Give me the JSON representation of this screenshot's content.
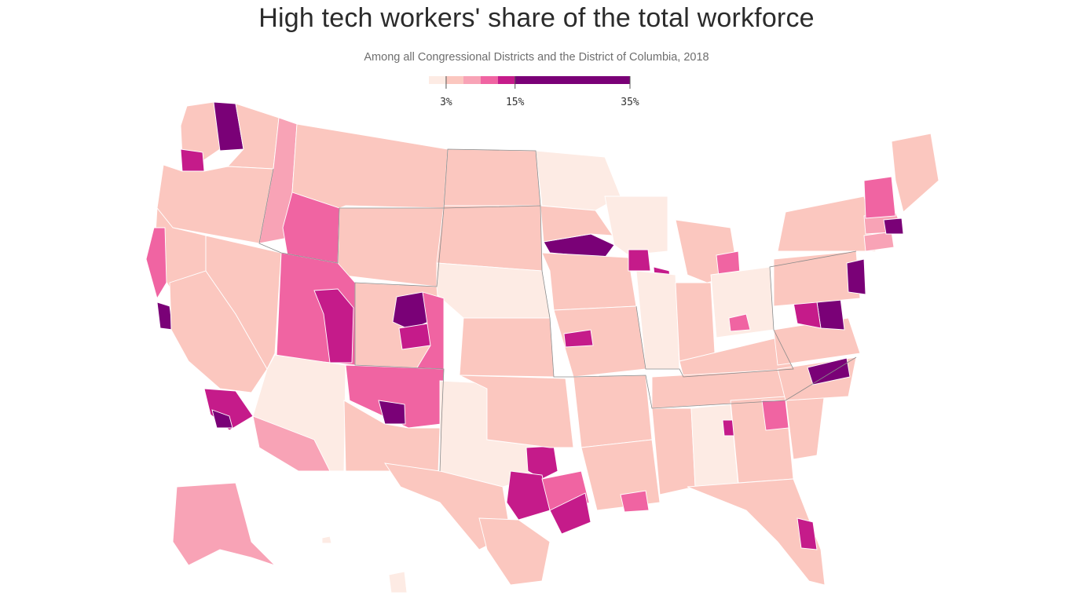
{
  "header": {
    "title": "High tech workers' share of the total workforce",
    "subtitle": "Among all Congressional Districts and the District of Columbia, 2018"
  },
  "legend": {
    "ticks": [
      {
        "label": "3%",
        "value": 3
      },
      {
        "label": "15%",
        "value": 15
      },
      {
        "label": "35%",
        "value": 35
      }
    ],
    "bins": [
      {
        "from": 0,
        "to": 3,
        "color": "#fdebe4"
      },
      {
        "from": 3,
        "to": 6,
        "color": "#fbc7bf"
      },
      {
        "from": 6,
        "to": 9,
        "color": "#f8a3b6"
      },
      {
        "from": 9,
        "to": 12,
        "color": "#f064a2"
      },
      {
        "from": 12,
        "to": 15,
        "color": "#c51b8a"
      },
      {
        "from": 15,
        "to": 35,
        "color": "#7a0177"
      }
    ]
  },
  "map": {
    "projection": "Albers USA",
    "unit": "congressional district"
  }
}
